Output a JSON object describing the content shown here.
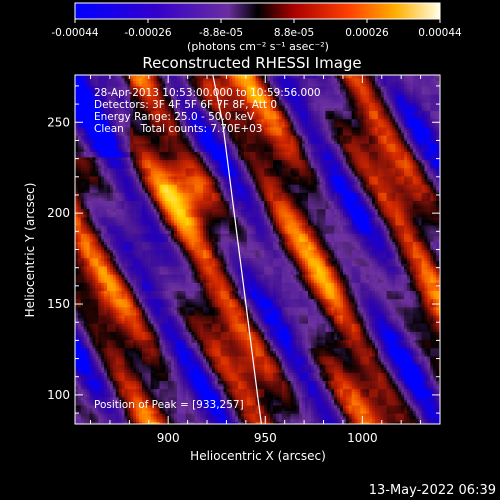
{
  "chart_data": {
    "type": "heatmap",
    "title": "Reconstructed RHESSI Image",
    "xlabel": "Heliocentric X (arcsec)",
    "ylabel": "Heliocentric Y (arcsec)",
    "xlim": [
      852,
      1040
    ],
    "ylim": [
      84,
      276
    ],
    "x_ticks": [
      900,
      950,
      1000
    ],
    "y_ticks": [
      100,
      150,
      200,
      250
    ],
    "colorbar": {
      "ticks": [
        "-0.00044",
        "-0.00026",
        "-8.8e-05",
        "8.8e-05",
        "0.00026",
        "0.00044"
      ],
      "units_line": "(photons cm⁻² s⁻¹ asec⁻²)",
      "range": [
        -0.00044,
        0.00044
      ]
    },
    "annotations": [
      "28-Apr-2013 10:53:00.000 to 10:59:56.000",
      "Detectors: 3F 4F 5F 6F 7F 8F, Att 0",
      "Energy Range: 25.0 - 50.0 keV",
      "Clean     Total counts: 7.70E+03"
    ],
    "peak_label": "Position of Peak = [933,257]",
    "peak": [
      933,
      257
    ],
    "timestamp": "13-May-2022 06:39",
    "limb_curve": [
      [
        923,
        276
      ],
      [
        928,
        250
      ],
      [
        934,
        200
      ],
      [
        940,
        150
      ],
      [
        946,
        100
      ],
      [
        948,
        84
      ]
    ]
  },
  "colors": {
    "colormap": [
      "#0000ff",
      "#4400aa",
      "#6a2ea0",
      "#000000",
      "#7a1010",
      "#d02000",
      "#ff7a00",
      "#ffd000",
      "#ffffe0"
    ],
    "limb": "#ffffff"
  }
}
